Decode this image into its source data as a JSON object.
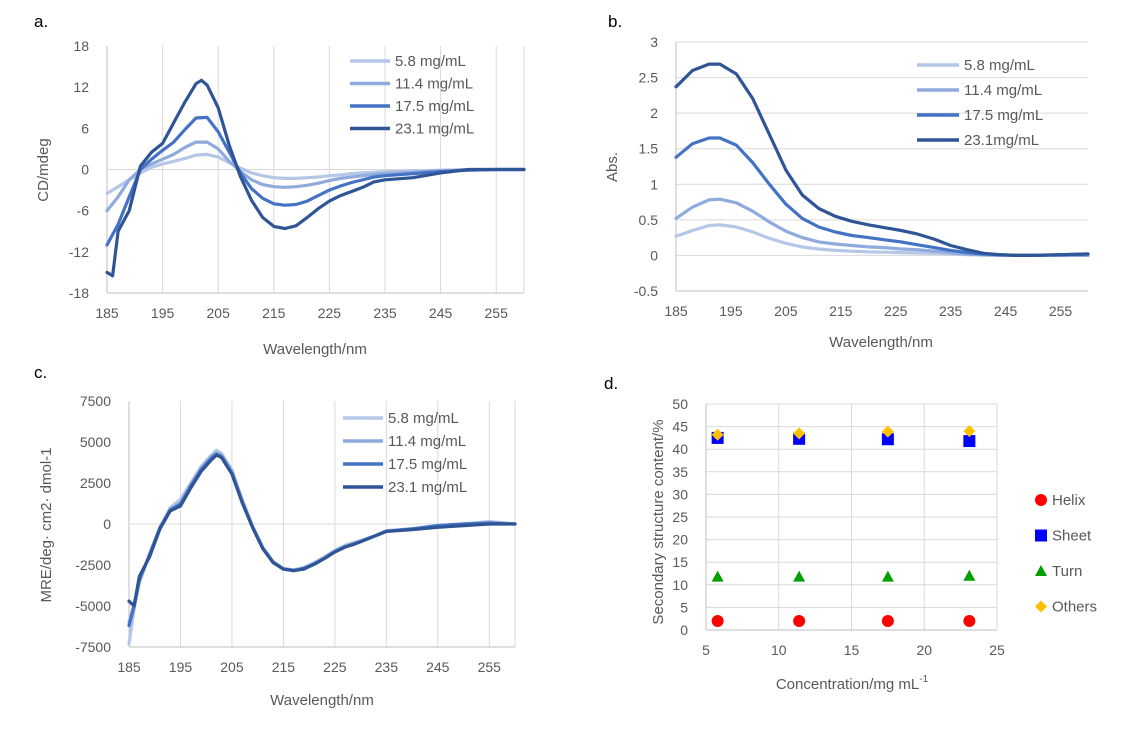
{
  "colors": {
    "s1": "#b4c7e7",
    "s2": "#8faadc",
    "s3": "#4472c4",
    "s4": "#2f5597",
    "helix": "#ff0000",
    "sheet": "#0000ff",
    "turn": "#00a000",
    "others": "#ffc000"
  },
  "chart_data": [
    {
      "panel": "a.",
      "type": "line",
      "xlabel": "Wavelength/nm",
      "ylabel": "CD/mdeg",
      "xlim": [
        185,
        260
      ],
      "ylim": [
        -18,
        18
      ],
      "xticks": [
        "185",
        "195",
        "205",
        "215",
        "225",
        "235",
        "245",
        "255"
      ],
      "yticks": [
        "18",
        "12",
        "6",
        "0",
        "-6",
        "-12",
        "-18"
      ],
      "grid": "vertical",
      "legend_position": "top-right",
      "series": [
        {
          "name": "5.8 mg/mL",
          "color_key": "s1",
          "x": [
            185,
            187,
            189,
            191,
            193,
            195,
            197,
            199,
            201,
            203,
            205,
            207,
            209,
            211,
            213,
            215,
            217,
            219,
            221,
            223,
            225,
            227,
            229,
            231,
            233,
            235,
            240,
            245,
            250,
            255,
            260
          ],
          "y": [
            -3.5,
            -2.5,
            -1.5,
            -0.5,
            0.3,
            0.8,
            1.2,
            1.6,
            2.1,
            2.2,
            1.8,
            1.0,
            0.2,
            -0.5,
            -0.9,
            -1.2,
            -1.3,
            -1.3,
            -1.2,
            -1.1,
            -0.9,
            -0.8,
            -0.6,
            -0.5,
            -0.4,
            -0.3,
            -0.2,
            -0.1,
            0,
            0,
            0
          ]
        },
        {
          "name": "11.4 mg/mL",
          "color_key": "s2",
          "x": [
            185,
            187,
            189,
            191,
            193,
            195,
            197,
            199,
            201,
            203,
            205,
            207,
            209,
            211,
            213,
            215,
            217,
            219,
            221,
            223,
            225,
            227,
            229,
            231,
            233,
            235,
            240,
            245,
            250,
            255,
            260
          ],
          "y": [
            -6,
            -4,
            -1.5,
            0,
            0.8,
            1.5,
            2.2,
            3.2,
            4.0,
            4.0,
            3.0,
            1.2,
            -0.3,
            -1.5,
            -2.2,
            -2.5,
            -2.6,
            -2.5,
            -2.3,
            -2.0,
            -1.6,
            -1.3,
            -1.1,
            -0.9,
            -0.7,
            -0.6,
            -0.4,
            -0.2,
            -0.1,
            0,
            0
          ]
        },
        {
          "name": "17.5 mg/mL",
          "color_key": "s3",
          "x": [
            185,
            187,
            189,
            191,
            193,
            195,
            197,
            199,
            201,
            203,
            205,
            207,
            209,
            211,
            213,
            215,
            217,
            219,
            221,
            223,
            225,
            227,
            229,
            231,
            233,
            235,
            240,
            245,
            250,
            255,
            260
          ],
          "y": [
            -11,
            -8,
            -4,
            0,
            1.5,
            2.8,
            4.0,
            5.8,
            7.5,
            7.6,
            5.5,
            2.5,
            -0.5,
            -2.8,
            -4.2,
            -5.0,
            -5.2,
            -5.1,
            -4.6,
            -3.8,
            -3.0,
            -2.4,
            -1.9,
            -1.5,
            -1.1,
            -0.9,
            -0.6,
            -0.3,
            -0.1,
            0,
            0
          ]
        },
        {
          "name": "23.1 mg/mL",
          "color_key": "s4",
          "x": [
            185,
            186,
            187,
            189,
            191,
            193,
            195,
            197,
            199,
            201,
            202,
            203,
            205,
            207,
            209,
            211,
            213,
            215,
            217,
            219,
            221,
            223,
            225,
            227,
            229,
            231,
            233,
            235,
            240,
            245,
            250,
            255,
            260
          ],
          "y": [
            -15,
            -15.5,
            -9,
            -6,
            0.5,
            2.5,
            3.8,
            6.8,
            9.8,
            12.5,
            13,
            12.3,
            9,
            3.5,
            -1,
            -4.5,
            -7,
            -8.3,
            -8.6,
            -8.2,
            -7,
            -5.7,
            -4.6,
            -3.8,
            -3.2,
            -2.6,
            -1.8,
            -1.5,
            -1.2,
            -0.5,
            0,
            0,
            0
          ]
        }
      ]
    },
    {
      "panel": "b.",
      "type": "line",
      "xlabel": "Wavelength/nm",
      "ylabel": "Abs.",
      "xlim": [
        185,
        260
      ],
      "ylim": [
        -0.5,
        3
      ],
      "xticks": [
        "185",
        "195",
        "205",
        "215",
        "225",
        "235",
        "245",
        "255"
      ],
      "yticks": [
        "3",
        "2.5",
        "2",
        "1.5",
        "1",
        "0.5",
        "0",
        "-0.5"
      ],
      "grid": "horizontal",
      "legend_position": "top-right",
      "series": [
        {
          "name": "5.8 mg/mL",
          "color_key": "s1",
          "x": [
            185,
            188,
            191,
            193,
            196,
            199,
            202,
            205,
            208,
            211,
            214,
            217,
            220,
            223,
            226,
            229,
            232,
            235,
            238,
            241,
            244,
            247,
            250,
            255,
            260
          ],
          "y": [
            0.27,
            0.35,
            0.42,
            0.43,
            0.4,
            0.33,
            0.24,
            0.17,
            0.12,
            0.09,
            0.07,
            0.06,
            0.05,
            0.045,
            0.04,
            0.035,
            0.03,
            0.02,
            0.01,
            0.005,
            0,
            0,
            0,
            0,
            0
          ]
        },
        {
          "name": "11.4 mg/mL",
          "color_key": "s2",
          "x": [
            185,
            188,
            191,
            193,
            196,
            199,
            202,
            205,
            208,
            211,
            214,
            217,
            220,
            223,
            226,
            229,
            232,
            235,
            238,
            241,
            244,
            247,
            250,
            255,
            260
          ],
          "y": [
            0.52,
            0.68,
            0.78,
            0.79,
            0.74,
            0.62,
            0.47,
            0.34,
            0.25,
            0.19,
            0.16,
            0.14,
            0.12,
            0.11,
            0.09,
            0.08,
            0.06,
            0.04,
            0.02,
            0.01,
            0,
            0,
            0,
            0,
            0
          ]
        },
        {
          "name": "17.5 mg/mL",
          "color_key": "s3",
          "x": [
            185,
            188,
            191,
            193,
            196,
            199,
            202,
            205,
            208,
            211,
            214,
            217,
            220,
            223,
            226,
            229,
            232,
            235,
            238,
            241,
            244,
            247,
            250,
            255,
            260
          ],
          "y": [
            1.38,
            1.57,
            1.65,
            1.65,
            1.55,
            1.3,
            1.0,
            0.72,
            0.52,
            0.4,
            0.33,
            0.28,
            0.25,
            0.22,
            0.19,
            0.15,
            0.11,
            0.07,
            0.04,
            0.02,
            0.01,
            0,
            0,
            0.01,
            0.02
          ]
        },
        {
          "name": "23.1mg/mL",
          "color_key": "s4",
          "x": [
            185,
            188,
            191,
            193,
            196,
            199,
            202,
            205,
            208,
            211,
            214,
            217,
            220,
            223,
            226,
            229,
            232,
            235,
            238,
            241,
            244,
            247,
            250,
            255,
            260
          ],
          "y": [
            2.37,
            2.6,
            2.69,
            2.69,
            2.55,
            2.2,
            1.7,
            1.2,
            0.85,
            0.66,
            0.55,
            0.48,
            0.43,
            0.39,
            0.35,
            0.3,
            0.23,
            0.14,
            0.08,
            0.03,
            0.01,
            0,
            0,
            0.01,
            0.02
          ]
        }
      ]
    },
    {
      "panel": "c.",
      "type": "line",
      "xlabel": "Wavelength/nm",
      "ylabel": "MRE/deg· cm2· dmol-1",
      "xlim": [
        185,
        260
      ],
      "ylim": [
        -7500,
        7500
      ],
      "xticks": [
        "185",
        "195",
        "205",
        "215",
        "225",
        "235",
        "245",
        "255"
      ],
      "yticks": [
        "7500",
        "5000",
        "2500",
        "0",
        "-2500",
        "-5000",
        "-7500"
      ],
      "grid": "vertical",
      "legend_position": "top-right",
      "series": [
        {
          "name": "5.8 mg/mL",
          "color_key": "s1",
          "x": [
            185,
            186,
            187,
            189,
            191,
            193,
            195,
            197,
            199,
            201,
            202,
            203,
            205,
            207,
            209,
            211,
            213,
            215,
            217,
            219,
            221,
            223,
            225,
            227,
            229,
            231,
            233,
            235,
            240,
            245,
            250,
            255,
            260
          ],
          "y": [
            -7300,
            -5200,
            -3600,
            -1800,
            -300,
            1000,
            1500,
            2500,
            3500,
            4200,
            4500,
            4300,
            3300,
            1500,
            -100,
            -1400,
            -2300,
            -2700,
            -2800,
            -2650,
            -2350,
            -2000,
            -1600,
            -1300,
            -1100,
            -900,
            -700,
            -400,
            -300,
            -100,
            0,
            150,
            0
          ]
        },
        {
          "name": "11.4 mg/mL",
          "color_key": "s2",
          "x": [
            185,
            186,
            187,
            189,
            191,
            193,
            195,
            197,
            199,
            201,
            202,
            203,
            205,
            207,
            209,
            211,
            213,
            215,
            217,
            219,
            221,
            223,
            225,
            227,
            229,
            231,
            233,
            235,
            240,
            245,
            250,
            255,
            260
          ],
          "y": [
            -6000,
            -4900,
            -3500,
            -1800,
            -200,
            900,
            1300,
            2400,
            3400,
            4100,
            4350,
            4200,
            3200,
            1400,
            -150,
            -1450,
            -2300,
            -2750,
            -2800,
            -2700,
            -2400,
            -2050,
            -1650,
            -1350,
            -1150,
            -950,
            -700,
            -450,
            -300,
            -100,
            0,
            100,
            0
          ]
        },
        {
          "name": "17.5 mg/mL",
          "color_key": "s3",
          "x": [
            185,
            186,
            187,
            189,
            191,
            193,
            195,
            197,
            199,
            201,
            202,
            203,
            205,
            207,
            209,
            211,
            213,
            215,
            217,
            219,
            221,
            223,
            225,
            227,
            229,
            231,
            233,
            235,
            240,
            245,
            250,
            255,
            260
          ],
          "y": [
            -6200,
            -5000,
            -3400,
            -1900,
            -250,
            850,
            1200,
            2300,
            3300,
            4000,
            4250,
            4100,
            3100,
            1350,
            -200,
            -1500,
            -2350,
            -2750,
            -2850,
            -2700,
            -2450,
            -2100,
            -1700,
            -1400,
            -1200,
            -950,
            -700,
            -450,
            -300,
            -100,
            0,
            50,
            0
          ]
        },
        {
          "name": "23.1 mg/mL",
          "color_key": "s4",
          "x": [
            185,
            186,
            187,
            189,
            191,
            193,
            195,
            197,
            199,
            201,
            202,
            203,
            205,
            207,
            209,
            211,
            213,
            215,
            217,
            219,
            221,
            223,
            225,
            227,
            229,
            231,
            233,
            235,
            240,
            245,
            250,
            255,
            260
          ],
          "y": [
            -4700,
            -5000,
            -3200,
            -2000,
            -300,
            800,
            1100,
            2200,
            3200,
            3900,
            4200,
            4050,
            3050,
            1300,
            -200,
            -1500,
            -2350,
            -2750,
            -2850,
            -2750,
            -2450,
            -2100,
            -1700,
            -1400,
            -1200,
            -950,
            -700,
            -450,
            -350,
            -200,
            -100,
            0,
            0
          ]
        }
      ]
    },
    {
      "panel": "d.",
      "type": "scatter",
      "xlabel": "Concentration/mg mL",
      "xlabel_sup": "-1",
      "ylabel": "Secondary structure content/%",
      "xlim": [
        5,
        25
      ],
      "ylim": [
        0,
        50
      ],
      "xticks": [
        "5",
        "10",
        "15",
        "20",
        "25"
      ],
      "yticks": [
        "50",
        "45",
        "40",
        "35",
        "30",
        "25",
        "20",
        "15",
        "10",
        "5",
        "0"
      ],
      "grid": "both",
      "legend_position": "right",
      "series": [
        {
          "name": "Helix",
          "marker": "circle",
          "color_key": "helix",
          "x": [
            5.8,
            11.4,
            17.5,
            23.1
          ],
          "y": [
            2.0,
            2.0,
            2.0,
            2.0
          ]
        },
        {
          "name": "Sheet",
          "marker": "square",
          "color_key": "sheet",
          "x": [
            5.8,
            11.4,
            17.5,
            23.1
          ],
          "y": [
            42.5,
            42.3,
            42.2,
            41.8
          ]
        },
        {
          "name": "Turn",
          "marker": "triangle",
          "color_key": "turn",
          "x": [
            5.8,
            11.4,
            17.5,
            23.1
          ],
          "y": [
            11.8,
            11.8,
            11.8,
            12.0
          ]
        },
        {
          "name": "Others",
          "marker": "diamond",
          "color_key": "others",
          "x": [
            5.8,
            11.4,
            17.5,
            23.1
          ],
          "y": [
            43.2,
            43.5,
            43.9,
            44.0
          ]
        }
      ]
    }
  ]
}
